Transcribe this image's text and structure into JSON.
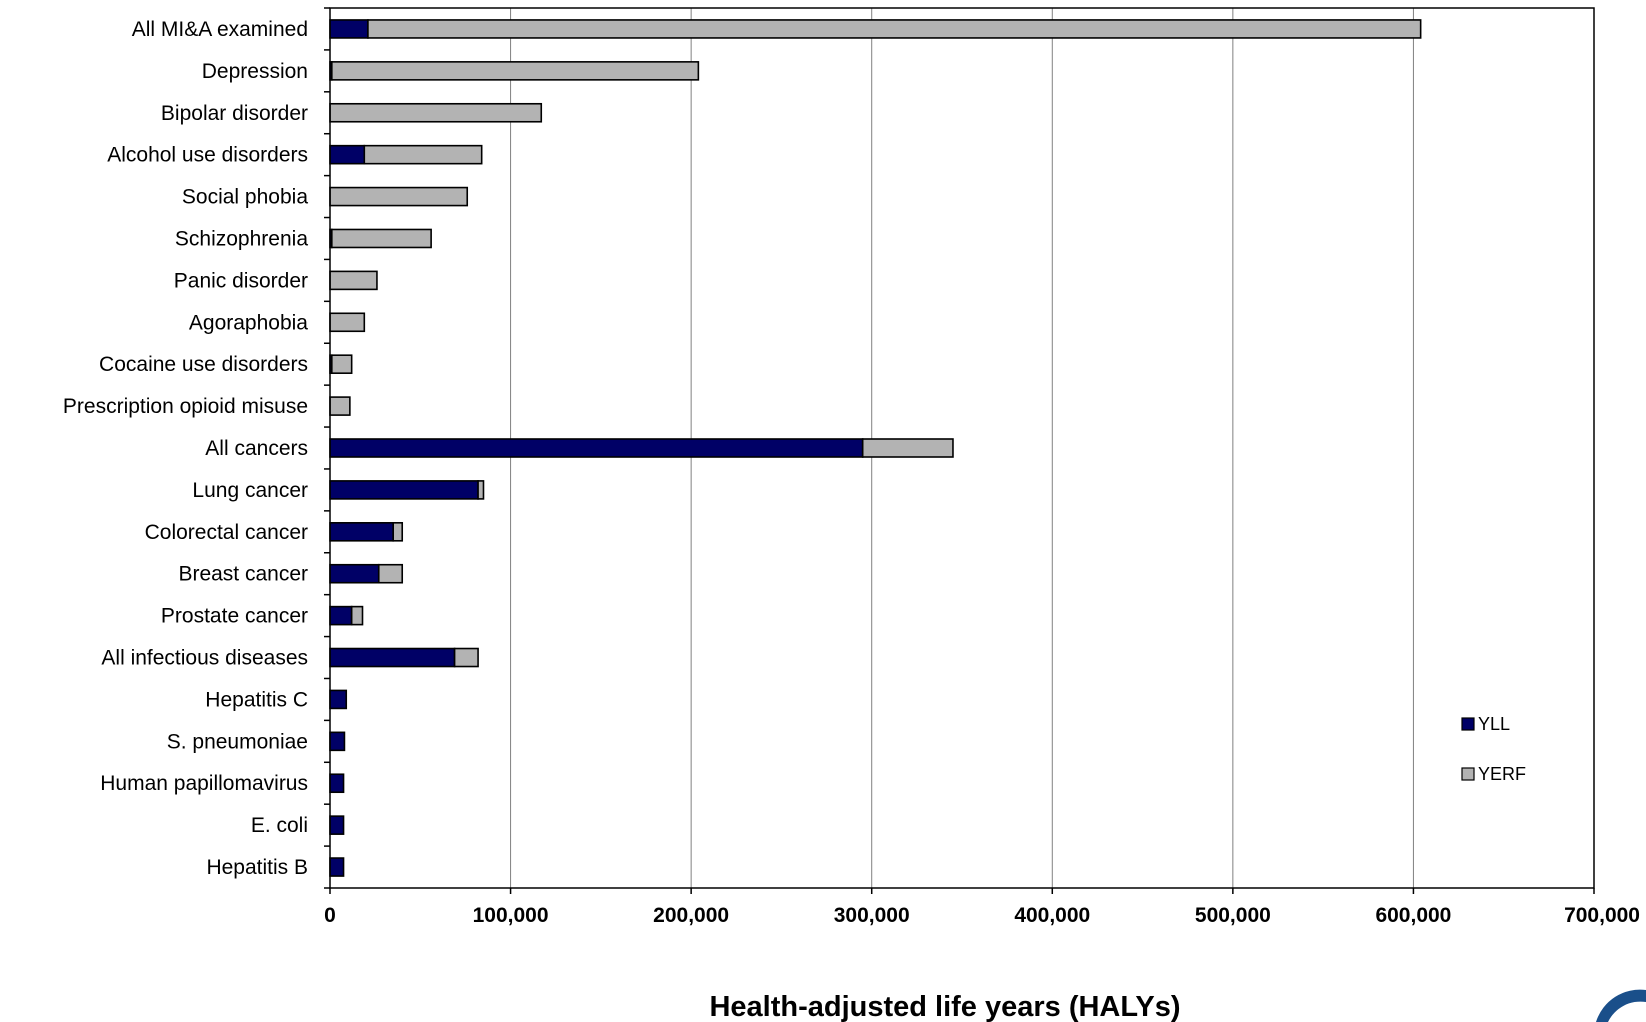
{
  "colors": {
    "YLL": "#000066",
    "YERF": "#b3b3b3",
    "logo": "#1a4f8a"
  },
  "chart_data": {
    "type": "bar",
    "orientation": "horizontal",
    "stacked": true,
    "categories": [
      "All MI&A examined",
      "Depression",
      "Bipolar disorder",
      "Alcohol use disorders",
      "Social phobia",
      "Schizophrenia",
      "Panic disorder",
      "Agoraphobia",
      "Cocaine use disorders",
      "Prescription opioid misuse",
      "All cancers",
      "Lung cancer",
      "Colorectal cancer",
      "Breast cancer",
      "Prostate cancer",
      "All infectious diseases",
      "Hepatitis C",
      "S. pneumoniae",
      "Human papillomavirus",
      "E. coli",
      "Hepatitis B"
    ],
    "series": [
      {
        "name": "YLL",
        "values": [
          21000,
          1000,
          0,
          19000,
          0,
          1000,
          0,
          0,
          1000,
          0,
          295000,
          82000,
          35000,
          27000,
          12000,
          69000,
          9000,
          8000,
          7500,
          7500,
          7500
        ]
      },
      {
        "name": "YERF",
        "values": [
          583000,
          203000,
          117000,
          65000,
          76000,
          55000,
          26000,
          19000,
          11000,
          11000,
          50000,
          3000,
          5000,
          13000,
          6000,
          13000,
          0,
          0,
          0,
          0,
          0
        ]
      }
    ],
    "xlabel": "Health-adjusted life years (HALYs)",
    "ylabel": "",
    "xlim": [
      0,
      700000
    ],
    "ticks": [
      "0",
      "100,000",
      "200,000",
      "300,000",
      "400,000",
      "500,000",
      "600,000",
      "700,000"
    ],
    "grid": true,
    "legend": [
      "YLL",
      "YERF"
    ],
    "legend_position": "bottom-right"
  }
}
